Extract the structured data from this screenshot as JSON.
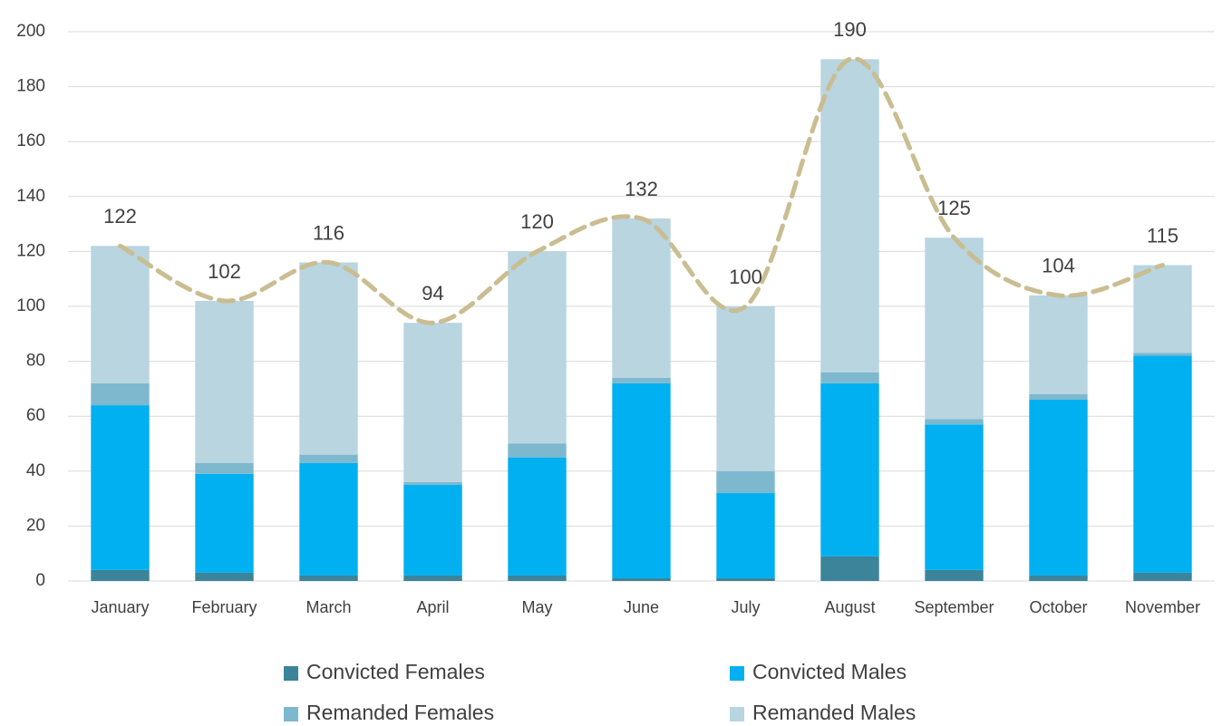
{
  "chart_data": {
    "type": "stacked-bar",
    "categories": [
      "January",
      "February",
      "March",
      "April",
      "May",
      "June",
      "July",
      "August",
      "September",
      "October",
      "November"
    ],
    "series": [
      {
        "name": "Convicted Females",
        "color": "#3b8499",
        "values": [
          4,
          3,
          2,
          2,
          2,
          1,
          1,
          9,
          4,
          2,
          3
        ]
      },
      {
        "name": "Convicted Males",
        "color": "#00b0f0",
        "values": [
          60,
          36,
          41,
          33,
          43,
          71,
          31,
          63,
          53,
          64,
          79
        ]
      },
      {
        "name": "Remanded Females",
        "color": "#7db8ce",
        "values": [
          8,
          4,
          3,
          1,
          5,
          2,
          8,
          4,
          2,
          2,
          1
        ]
      },
      {
        "name": "Remanded Males",
        "color": "#b8d5e0",
        "values": [
          50,
          59,
          70,
          58,
          70,
          58,
          60,
          114,
          66,
          36,
          32
        ]
      }
    ],
    "line": {
      "color": "#c9bd91",
      "values": [
        122,
        102,
        116,
        94,
        120,
        132,
        100,
        190,
        125,
        104,
        115
      ]
    },
    "ylim": [
      0,
      200
    ],
    "yticks": [
      0,
      20,
      40,
      60,
      80,
      100,
      120,
      140,
      160,
      180,
      200
    ],
    "grid": true
  }
}
